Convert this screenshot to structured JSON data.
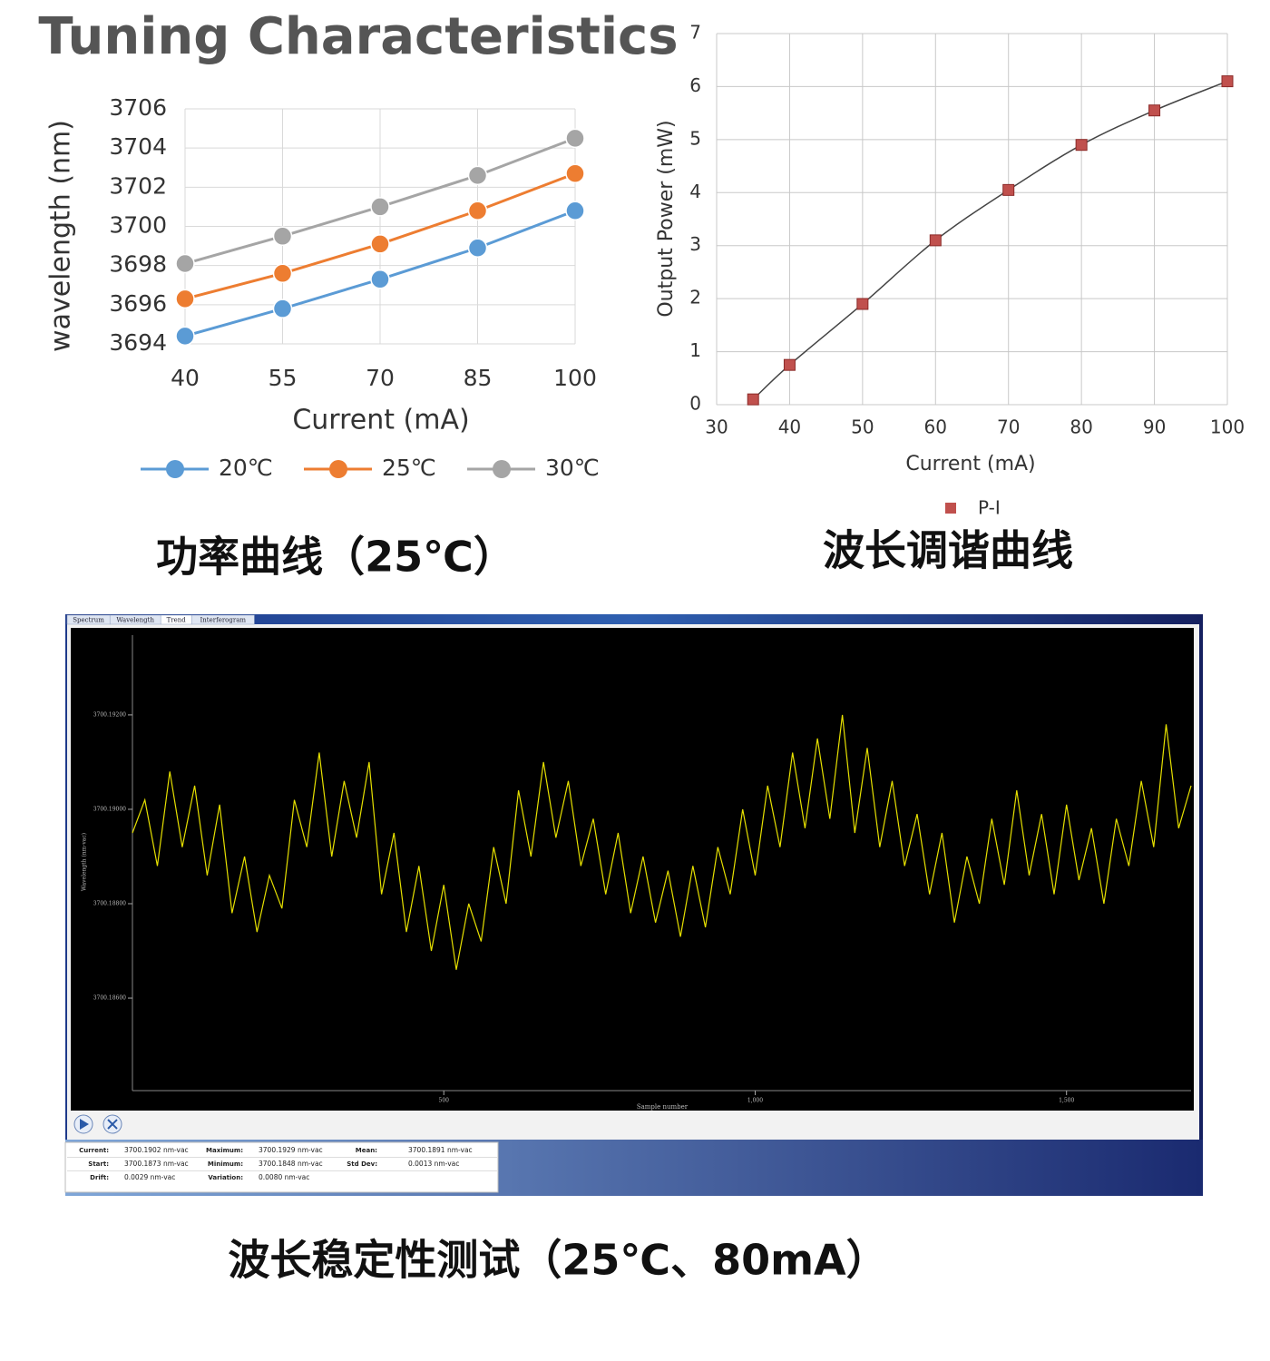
{
  "chart_data": [
    {
      "type": "line",
      "title": "Tuning Characteristics",
      "x_label": "Current (mA)",
      "y_label": "wavelength (nm)",
      "x": [
        40,
        55,
        70,
        85,
        100
      ],
      "xlim": [
        40,
        100
      ],
      "xticks": [
        40,
        55,
        70,
        85,
        100
      ],
      "ylim": [
        3694,
        3706
      ],
      "yticks": [
        3694,
        3696,
        3698,
        3700,
        3702,
        3704,
        3706
      ],
      "grid": true,
      "legend": "bottom",
      "series": [
        {
          "name": "20℃",
          "color": "#5b9bd5",
          "values": [
            3694.4,
            3695.8,
            3697.3,
            3698.9,
            3700.8
          ]
        },
        {
          "name": "25℃",
          "color": "#ed7d31",
          "values": [
            3696.3,
            3697.6,
            3699.1,
            3700.8,
            3702.7
          ]
        },
        {
          "name": "30℃",
          "color": "#a5a5a5",
          "values": [
            3698.1,
            3699.5,
            3701.0,
            3702.6,
            3704.5
          ]
        }
      ],
      "caption": "功率曲线（25℃）"
    },
    {
      "type": "scatter",
      "x_label": "Current (mA)",
      "y_label": "Output Power (mW)",
      "xlim": [
        30,
        100
      ],
      "xticks": [
        30,
        40,
        50,
        60,
        70,
        80,
        90,
        100
      ],
      "ylim": [
        0,
        7
      ],
      "yticks": [
        0,
        1,
        2,
        3,
        4,
        5,
        6,
        7
      ],
      "grid": true,
      "trendline": true,
      "legend": "bottom",
      "series": [
        {
          "name": "P-I",
          "color": "#c0504d",
          "x": [
            35,
            40,
            50,
            60,
            70,
            80,
            90,
            100
          ],
          "values": [
            0.1,
            0.75,
            1.9,
            3.1,
            4.05,
            4.9,
            5.55,
            6.1
          ]
        }
      ],
      "caption": "波长调谐曲线"
    },
    {
      "type": "line",
      "tabs": [
        "Spectrum",
        "Wavelength",
        "Trend",
        "Interferogram"
      ],
      "active_tab": 2,
      "x_label": "Sample number",
      "y_label": "Wavelength (nm-vac)",
      "xlim": [
        0,
        1700
      ],
      "xticks": [
        500,
        {
          "value": 1000,
          "label": "1,000"
        },
        {
          "value": 1500,
          "label": "1,500"
        }
      ],
      "ylim": [
        3700.18404,
        3700.19369
      ],
      "yticks": [
        {
          "value": 3700.186,
          "label": "3700.18600"
        },
        {
          "value": 3700.188,
          "label": "3700.18800"
        },
        {
          "value": 3700.19,
          "label": "3700.19000"
        },
        {
          "value": 3700.192,
          "label": "3700.19200"
        }
      ],
      "series": [
        {
          "color": "#e6e000",
          "x": [
            0,
            20,
            40,
            60,
            80,
            100,
            120,
            140,
            160,
            180,
            200,
            220,
            240,
            260,
            280,
            300,
            320,
            340,
            360,
            380,
            400,
            420,
            440,
            460,
            480,
            500,
            520,
            540,
            560,
            580,
            600,
            620,
            640,
            660,
            680,
            700,
            720,
            740,
            760,
            780,
            800,
            820,
            840,
            860,
            880,
            900,
            920,
            940,
            960,
            980,
            1000,
            1020,
            1040,
            1060,
            1080,
            1100,
            1120,
            1140,
            1160,
            1180,
            1200,
            1220,
            1240,
            1260,
            1280,
            1300,
            1320,
            1340,
            1360,
            1380,
            1400,
            1420,
            1440,
            1460,
            1480,
            1500,
            1520,
            1540,
            1560,
            1580,
            1600,
            1620,
            1640,
            1660,
            1680,
            1700
          ],
          "values": [
            3700.1895,
            3700.1902,
            3700.1888,
            3700.1908,
            3700.1892,
            3700.1905,
            3700.1886,
            3700.1901,
            3700.1878,
            3700.189,
            3700.1874,
            3700.1886,
            3700.1879,
            3700.1902,
            3700.1892,
            3700.1912,
            3700.189,
            3700.1906,
            3700.1894,
            3700.191,
            3700.1882,
            3700.1895,
            3700.1874,
            3700.1888,
            3700.187,
            3700.1884,
            3700.1866,
            3700.188,
            3700.1872,
            3700.1892,
            3700.188,
            3700.1904,
            3700.189,
            3700.191,
            3700.1894,
            3700.1906,
            3700.1888,
            3700.1898,
            3700.1882,
            3700.1895,
            3700.1878,
            3700.189,
            3700.1876,
            3700.1887,
            3700.1873,
            3700.1888,
            3700.1875,
            3700.1892,
            3700.1882,
            3700.19,
            3700.1886,
            3700.1905,
            3700.1892,
            3700.1912,
            3700.1896,
            3700.1915,
            3700.1898,
            3700.192,
            3700.1895,
            3700.1913,
            3700.1892,
            3700.1906,
            3700.1888,
            3700.1899,
            3700.1882,
            3700.1895,
            3700.1876,
            3700.189,
            3700.188,
            3700.1898,
            3700.1884,
            3700.1904,
            3700.1886,
            3700.1899,
            3700.1882,
            3700.1901,
            3700.1885,
            3700.1896,
            3700.188,
            3700.1898,
            3700.1888,
            3700.1906,
            3700.1892,
            3700.1918,
            3700.1896,
            3700.1905
          ]
        }
      ],
      "stats": [
        [
          {
            "label": "Current:",
            "value": "3700.1902 nm-vac"
          },
          {
            "label": "Maximum:",
            "value": "3700.1929 nm-vac"
          },
          {
            "label": "Mean:",
            "value": "3700.1891 nm-vac"
          }
        ],
        [
          {
            "label": "Start:",
            "value": "3700.1873 nm-vac"
          },
          {
            "label": "Minimum:",
            "value": "3700.1848 nm-vac"
          },
          {
            "label": "Std Dev:",
            "value": "0.0013 nm-vac"
          }
        ],
        [
          {
            "label": "Drift:",
            "value": "0.0029 nm-vac"
          },
          {
            "label": "Variation:",
            "value": "0.0080 nm-vac"
          }
        ]
      ],
      "caption": "波长稳定性测试（25℃、80mA）"
    }
  ]
}
